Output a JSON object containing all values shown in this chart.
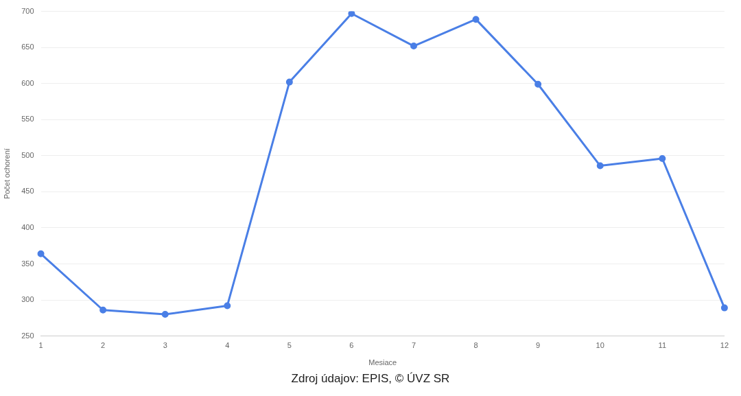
{
  "chart_data": {
    "type": "line",
    "categories": [
      "1",
      "2",
      "3",
      "4",
      "5",
      "6",
      "7",
      "8",
      "9",
      "10",
      "11",
      "12"
    ],
    "series": [
      {
        "color": "#4a7fe6",
        "values": [
          364,
          286,
          280,
          292,
          602,
          697,
          652,
          689,
          599,
          486,
          496,
          289
        ]
      }
    ],
    "xlabel": "Mesiace",
    "ylabel": "Počet ochorení",
    "ylim": [
      250,
      700
    ],
    "yticks": [
      250,
      300,
      350,
      400,
      450,
      500,
      550,
      600,
      650,
      700
    ],
    "grid": "y",
    "marker": "circle",
    "line_style": "solid",
    "annotations": [
      "Zdroj údajov: EPIS, © ÚVZ SR"
    ]
  }
}
